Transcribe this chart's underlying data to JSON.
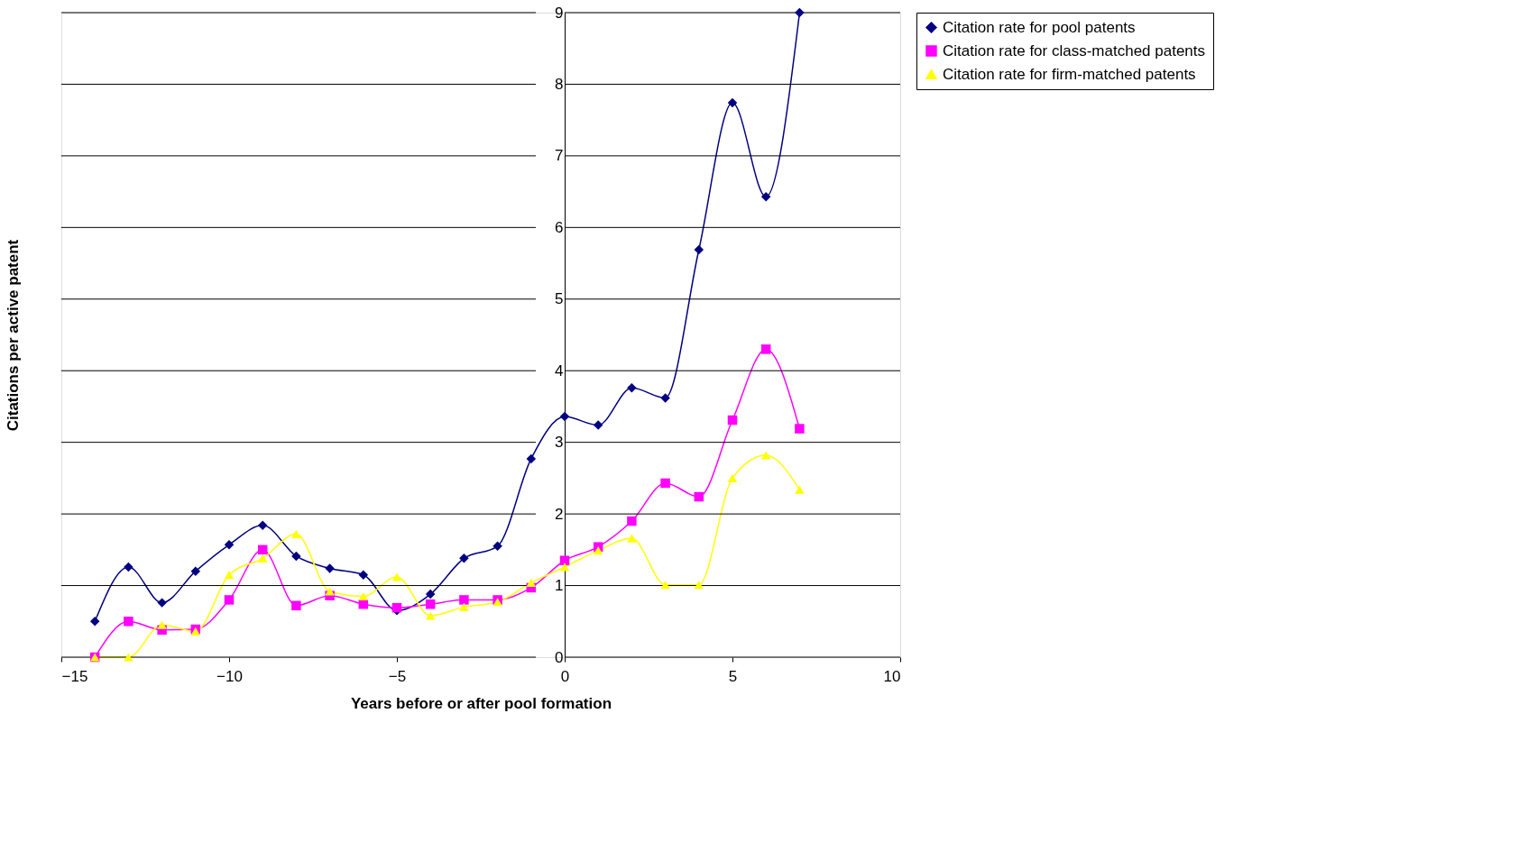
{
  "chart_data": {
    "type": "line",
    "xlabel": "Years before or after pool formation",
    "ylabel": "Citations per active patent",
    "x": [
      -14,
      -13,
      -12,
      -11,
      -10,
      -9,
      -8,
      -7,
      -6,
      -5,
      -4,
      -3,
      -2,
      -1,
      0,
      1,
      2,
      3,
      4,
      5,
      6,
      7
    ],
    "series": [
      {
        "name": "Citation rate for pool patents",
        "color": "#000080",
        "marker": "diamond",
        "values": [
          0.5,
          1.26,
          0.76,
          1.2,
          1.57,
          1.84,
          1.41,
          1.24,
          1.15,
          0.65,
          0.88,
          1.38,
          1.55,
          2.77,
          3.36,
          3.24,
          3.76,
          3.62,
          5.69,
          7.74,
          6.43,
          9.0
        ]
      },
      {
        "name": "Citation rate for class-matched patents",
        "color": "#ff00ff",
        "marker": "square",
        "values": [
          0,
          0.5,
          0.38,
          0.39,
          0.8,
          1.5,
          0.72,
          0.86,
          0.74,
          0.69,
          0.74,
          0.8,
          0.8,
          0.97,
          1.35,
          1.54,
          1.9,
          2.43,
          2.24,
          3.31,
          4.3,
          3.19
        ]
      },
      {
        "name": "Citation rate for firm-matched patents",
        "color": "#ffff00",
        "marker": "triangle",
        "values": [
          0,
          0,
          0.45,
          0.36,
          1.15,
          1.38,
          1.72,
          0.92,
          0.85,
          1.12,
          0.58,
          0.7,
          0.77,
          1.04,
          1.26,
          1.49,
          1.66,
          1.01,
          1.01,
          2.5,
          2.82,
          2.34
        ]
      }
    ],
    "xlim": [
      -15,
      10
    ],
    "xticks": [
      -15,
      -10,
      -5,
      0,
      5,
      10
    ],
    "ylim": [
      0,
      9
    ],
    "yticks": [
      0,
      1,
      2,
      3,
      4,
      5,
      6,
      7,
      8,
      9
    ],
    "grid": "y",
    "legend": "right",
    "line_style": "solid"
  }
}
